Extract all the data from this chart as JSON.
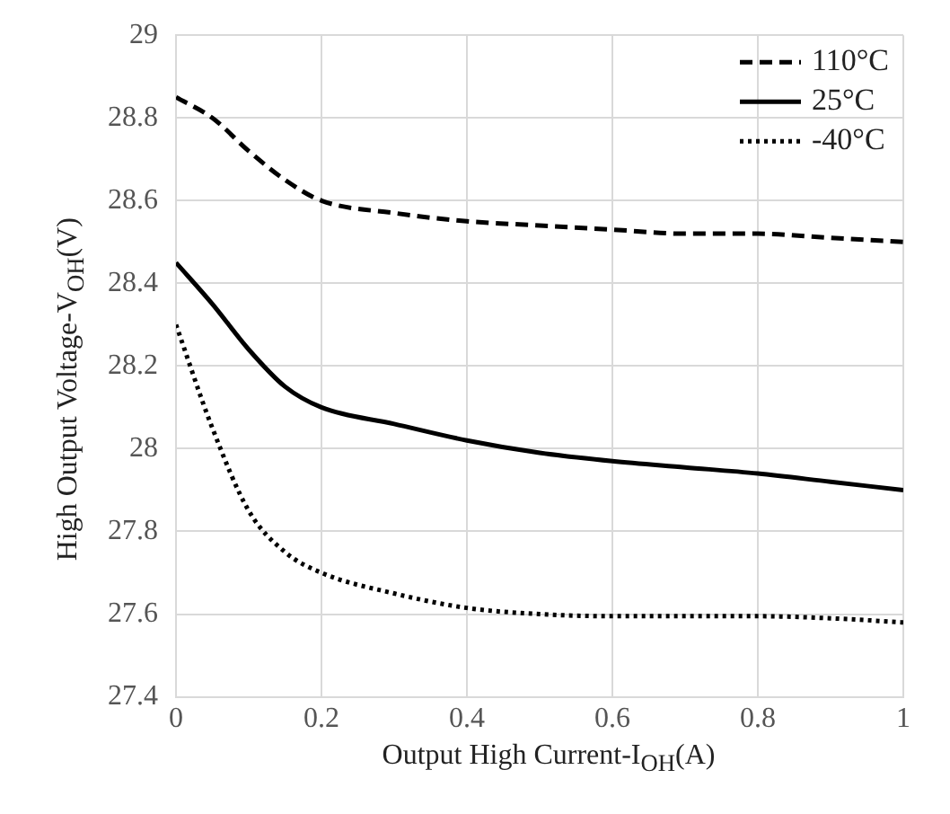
{
  "chart_data": {
    "type": "line",
    "xlabel": "Output High Current-I$_{OH}$(A)",
    "ylabel": "High Output Voltage-V$_{OH}$(V)",
    "x": [
      0,
      0.05,
      0.1,
      0.15,
      0.2,
      0.3,
      0.4,
      0.5,
      0.6,
      0.7,
      0.8,
      0.9,
      1
    ],
    "series": [
      {
        "name": "110°C",
        "color": "#000000",
        "line_style": "dashed",
        "values": [
          28.85,
          28.8,
          28.72,
          28.65,
          28.6,
          28.57,
          28.55,
          28.54,
          28.53,
          28.52,
          28.52,
          28.51,
          28.5
        ]
      },
      {
        "name": "25°C",
        "color": "#000000",
        "line_style": "solid",
        "values": [
          28.45,
          28.35,
          28.24,
          28.15,
          28.1,
          28.06,
          28.02,
          27.99,
          27.97,
          27.955,
          27.94,
          27.92,
          27.9
        ]
      },
      {
        "name": "-40°C",
        "color": "#000000",
        "line_style": "dotted",
        "values": [
          28.3,
          28.05,
          27.85,
          27.75,
          27.7,
          27.65,
          27.615,
          27.6,
          27.595,
          27.595,
          27.595,
          27.59,
          27.58
        ]
      }
    ],
    "xlim": [
      0,
      1
    ],
    "xticks": [
      0,
      0.2,
      0.4,
      0.6,
      0.8,
      1
    ],
    "ylim": [
      27.4,
      29
    ],
    "yticks": [
      27.4,
      27.6,
      27.8,
      28,
      28.2,
      28.4,
      28.6,
      28.8,
      29
    ],
    "grid": true,
    "legend": "top right",
    "marker": "none"
  }
}
